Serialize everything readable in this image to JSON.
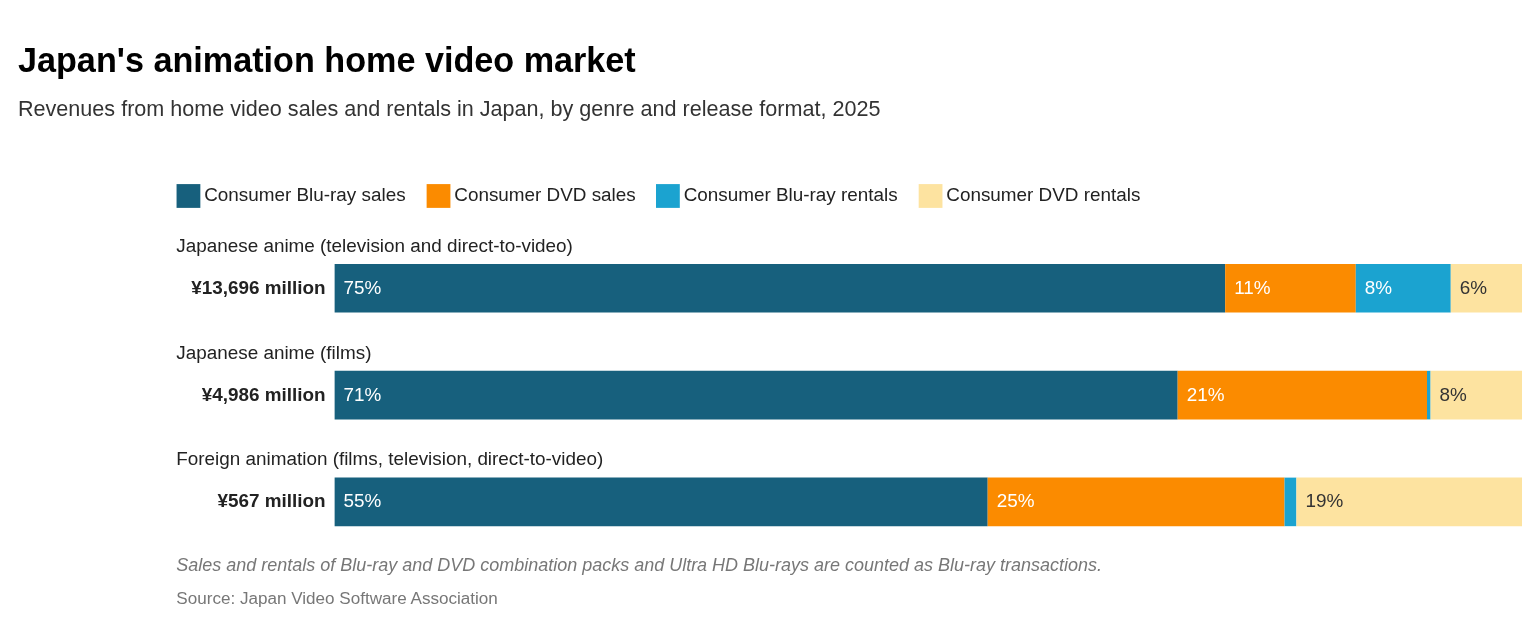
{
  "chart_data": {
    "type": "bar",
    "orientation": "horizontal",
    "stacked": true,
    "title": "Japan's animation home video market",
    "subtitle": "Revenues from home video sales and rentals in Japan, by genre and release format, 2025",
    "categories": [
      "¥13,696 million",
      "¥4,986 million",
      "¥567 million"
    ],
    "series": [
      {
        "name": "Consumer Blu-ray sales",
        "color": "#17607d",
        "values": [
          75,
          71,
          55
        ],
        "value_labels": [
          "75%",
          "71%",
          "55%"
        ]
      },
      {
        "name": "Consumer DVD sales",
        "color": "#fb8b00",
        "values": [
          11,
          21,
          25
        ],
        "value_labels": [
          "11%",
          "21%",
          "25%"
        ]
      },
      {
        "name": "Consumer Blu-ray rentals",
        "color": "#1ba3d0",
        "values": [
          8,
          0.3,
          1
        ],
        "value_labels": [
          "8%",
          null,
          null
        ]
      },
      {
        "name": "Consumer DVD rentals",
        "color": "#fde3a0",
        "values": [
          6,
          7.7,
          19
        ],
        "value_labels": [
          "6%",
          "8%",
          "19%"
        ]
      }
    ],
    "xlim": [
      0,
      100
    ],
    "legend": "top left",
    "grid": false,
    "annotations": [
      "Japanese anime (television and direct-to-video)",
      "Japanese anime (films)",
      "Foreign animation (films, television, direct-to-video)",
      "Sales and rentals of Blu-ray and DVD combination packs and Ultra HD Blu-rays are counted as Blu-ray transactions.",
      "Source: Japan Video Software Association"
    ]
  }
}
